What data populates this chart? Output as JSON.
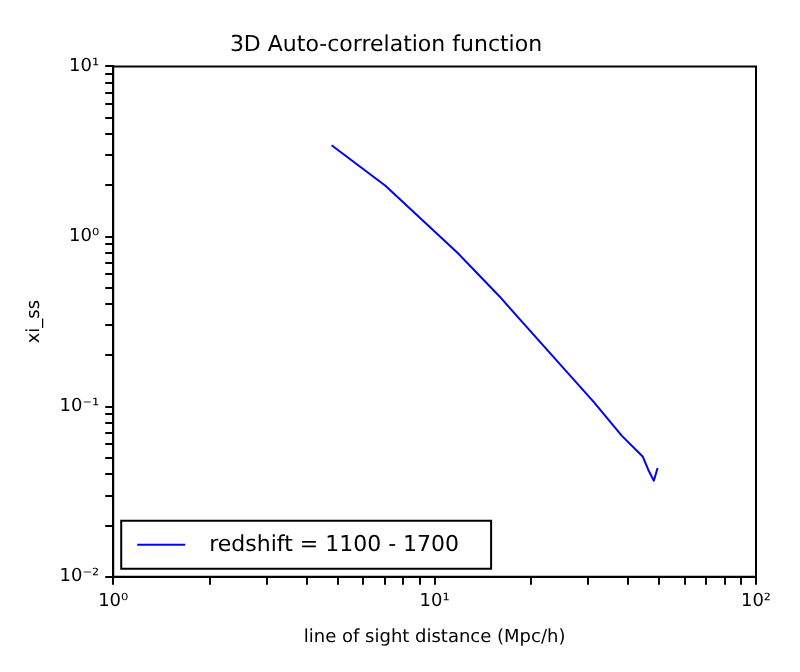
{
  "chart_data": {
    "type": "line",
    "title": "3D Auto-correlation function",
    "xlabel": "line of sight distance (Mpc/h)",
    "ylabel": "xi_ss",
    "log": "xy",
    "grid": false,
    "legend": "bottom left",
    "marker": "none",
    "line_style": "solid",
    "series": [
      {
        "name": "redshift = 1100 - 1700",
        "color": "#0000ff",
        "x": [
          4.78,
          7.03,
          11.8,
          15.9,
          18.9,
          31.2,
          38.2,
          44.4,
          46.2,
          48.1,
          49.4
        ],
        "values": [
          3.44,
          1.99,
          0.8,
          0.446,
          0.309,
          0.107,
          0.0676,
          0.051,
          0.0426,
          0.0367,
          0.0436
        ]
      }
    ],
    "xlim": [
      1,
      100
    ],
    "ylim": [
      0.01,
      10
    ],
    "xticks": [
      {
        "value": 1,
        "label": "10⁰"
      },
      {
        "value": 2,
        "label": null
      },
      {
        "value": 3,
        "label": null
      },
      {
        "value": 4,
        "label": null
      },
      {
        "value": 5,
        "label": null
      },
      {
        "value": 6,
        "label": null
      },
      {
        "value": 7,
        "label": null
      },
      {
        "value": 8,
        "label": null
      },
      {
        "value": 9,
        "label": null
      },
      {
        "value": 10,
        "label": "10¹"
      },
      {
        "value": 20,
        "label": null
      },
      {
        "value": 30,
        "label": null
      },
      {
        "value": 40,
        "label": null
      },
      {
        "value": 50,
        "label": null
      },
      {
        "value": 60,
        "label": null
      },
      {
        "value": 70,
        "label": null
      },
      {
        "value": 80,
        "label": null
      },
      {
        "value": 90,
        "label": null
      },
      {
        "value": 100,
        "label": "10²"
      }
    ],
    "yticks": [
      {
        "value": 0.01,
        "label": "10⁻²"
      },
      {
        "value": 0.02,
        "label": null
      },
      {
        "value": 0.03,
        "label": null
      },
      {
        "value": 0.04,
        "label": null
      },
      {
        "value": 0.05,
        "label": null
      },
      {
        "value": 0.06,
        "label": null
      },
      {
        "value": 0.07,
        "label": null
      },
      {
        "value": 0.08,
        "label": null
      },
      {
        "value": 0.09,
        "label": null
      },
      {
        "value": 0.1,
        "label": "10⁻¹"
      },
      {
        "value": 0.2,
        "label": null
      },
      {
        "value": 0.3,
        "label": null
      },
      {
        "value": 0.4,
        "label": null
      },
      {
        "value": 0.5,
        "label": null
      },
      {
        "value": 0.6,
        "label": null
      },
      {
        "value": 0.7,
        "label": null
      },
      {
        "value": 0.8,
        "label": null
      },
      {
        "value": 0.9,
        "label": null
      },
      {
        "value": 1,
        "label": "10⁰"
      },
      {
        "value": 2,
        "label": null
      },
      {
        "value": 3,
        "label": null
      },
      {
        "value": 4,
        "label": null
      },
      {
        "value": 5,
        "label": null
      },
      {
        "value": 6,
        "label": null
      },
      {
        "value": 7,
        "label": null
      },
      {
        "value": 8,
        "label": null
      },
      {
        "value": 9,
        "label": null
      },
      {
        "value": 10,
        "label": "10¹"
      }
    ]
  }
}
